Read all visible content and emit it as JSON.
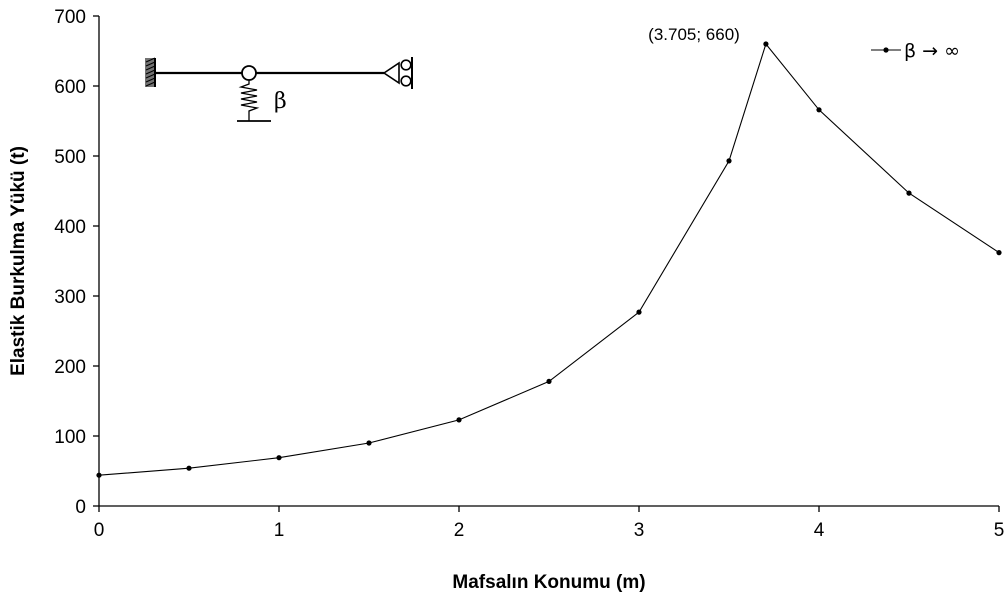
{
  "chart_data": {
    "type": "line",
    "xlabel": "Mafsalın Konumu (m)",
    "ylabel": "Elastik Burkulma Yükü (t)",
    "xlim": [
      0,
      5
    ],
    "ylim": [
      0,
      700
    ],
    "xticks": [
      0,
      1,
      2,
      3,
      4,
      5
    ],
    "yticks": [
      0,
      100,
      200,
      300,
      400,
      500,
      600,
      700
    ],
    "grid": false,
    "legend_position": "top-right",
    "series": [
      {
        "name": "β → ∞",
        "color": "#000000",
        "x": [
          0,
          0.5,
          1,
          1.5,
          2,
          2.5,
          3,
          3.5,
          3.705,
          4,
          4.5,
          5
        ],
        "y": [
          44,
          54,
          69,
          90,
          123,
          178,
          277,
          493,
          660,
          566,
          447,
          362
        ]
      }
    ],
    "annotations": [
      {
        "text": "(3.705; 660)",
        "x": 3.705,
        "y": 660
      }
    ],
    "inset_diagram": {
      "label": "β"
    }
  }
}
